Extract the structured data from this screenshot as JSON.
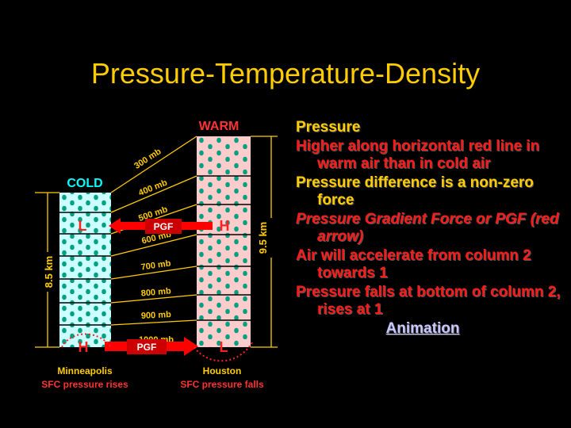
{
  "title": "Pressure-Temperature-Density",
  "diagram": {
    "cold_label": "COLD",
    "warm_label": "WARM",
    "cold_height": "8.5 km",
    "warm_height": "9.5 km",
    "levels": [
      "300 mb",
      "400 mb",
      "500 mb",
      "600 mb",
      "700 mb",
      "800 mb",
      "900 mb",
      "1000 mb"
    ],
    "upper_left_pressure": "L",
    "upper_right_pressure": "H",
    "lower_left_pressure": "H",
    "lower_right_pressure": "L",
    "pgf_label": "PGF",
    "left_city": "Minneapolis",
    "left_caption": "SFC pressure rises",
    "right_city": "Houston",
    "right_caption": "SFC pressure falls",
    "colors": {
      "cold_fill": "#CCFFFF",
      "warm_fill": "#FFCCCC",
      "dot": "#00A080",
      "arrow": "#FF0000",
      "label_yellow": "#FFCC00",
      "cold_text": "#00FFFF",
      "warm_text": "#FF3333"
    }
  },
  "bullets": [
    {
      "text": "Pressure",
      "color": "yellow"
    },
    {
      "text": "Higher along horizontal red line in warm air than in cold air",
      "color": "red"
    },
    {
      "text": "Pressure difference is a non-zero force",
      "color": "yellow"
    },
    {
      "text": "Pressure Gradient Force or PGF (red arrow)",
      "color": "red-italic"
    },
    {
      "text": "Air will accelerate from column 2 towards 1",
      "color": "red"
    },
    {
      "text": "Pressure falls at bottom of column 2, rises at 1",
      "color": "red"
    }
  ],
  "animation_link": "Animation"
}
